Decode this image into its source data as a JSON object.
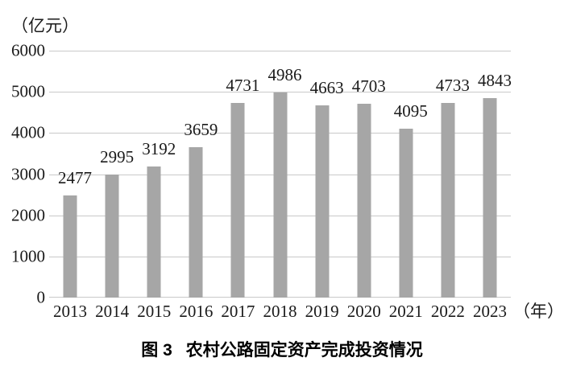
{
  "chart_data": {
    "type": "bar",
    "unit_label": "（亿元）",
    "x_unit_label": "（年）",
    "categories": [
      "2013",
      "2014",
      "2015",
      "2016",
      "2017",
      "2018",
      "2019",
      "2020",
      "2021",
      "2022",
      "2023"
    ],
    "values": [
      2477,
      2995,
      3192,
      3659,
      4731,
      4986,
      4663,
      4703,
      4095,
      4733,
      4843
    ],
    "yticks": [
      0,
      1000,
      2000,
      3000,
      4000,
      5000,
      6000
    ],
    "ylim": [
      0,
      6000
    ],
    "grid": true,
    "legend": "none",
    "data_labels": "above-bars",
    "bar_color": "#a6a6a6",
    "gridline_color": "#c9c9c9",
    "title": "图 3　农村公路固定资产完成投资情况"
  },
  "caption": {
    "figure_label": "图 3",
    "title": "农村公路固定资产完成投资情况"
  }
}
